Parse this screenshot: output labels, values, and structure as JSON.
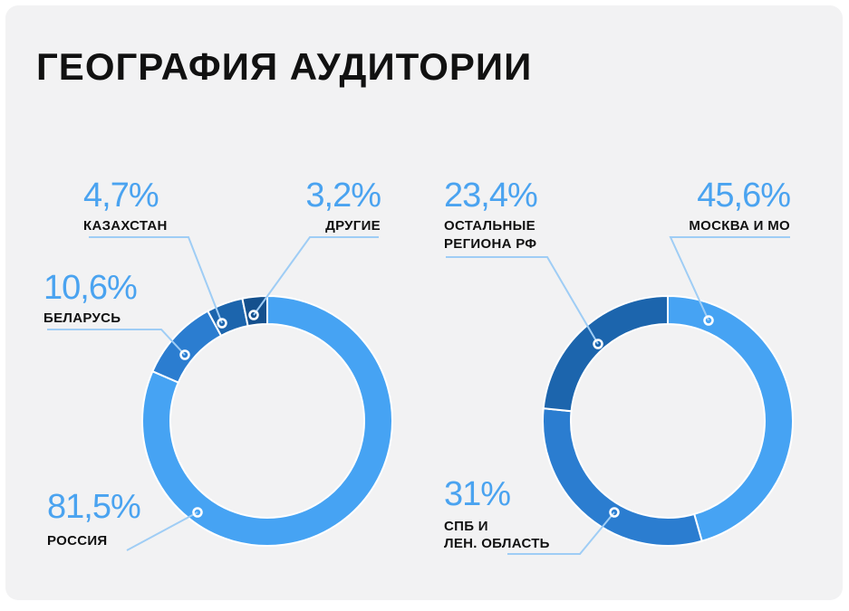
{
  "title": "ГЕОГРАФИЯ АУДИТОРИИ",
  "colors": {
    "background": "#f2f2f3",
    "label_text": "#111111",
    "percent_text": "#4aa3f0",
    "leader_line": "#9fcdf5"
  },
  "chart_data": [
    {
      "type": "pie",
      "style": "donut",
      "title": "",
      "slices": [
        {
          "name": "РОССИЯ",
          "value": 81.5,
          "pct_label": "81,5%",
          "color": "#46a3f3"
        },
        {
          "name": "БЕЛАРУСЬ",
          "value": 10.6,
          "pct_label": "10,6%",
          "color": "#2b7dd0"
        },
        {
          "name": "КАЗАХСТАН",
          "value": 4.7,
          "pct_label": "4,7%",
          "color": "#1c65ad"
        },
        {
          "name": "ДРУГИЕ",
          "value": 3.2,
          "pct_label": "3,2%",
          "color": "#14508d"
        }
      ]
    },
    {
      "type": "pie",
      "style": "donut",
      "title": "",
      "slices": [
        {
          "name": "МОСКВА И МО",
          "value": 45.6,
          "pct_label": "45,6%",
          "color": "#46a3f3"
        },
        {
          "name": "СПБ И ЛЕН. ОБЛАСТЬ",
          "value": 31,
          "pct_label": "31%",
          "color": "#2b7dd0"
        },
        {
          "name": "ОСТАЛЬНЫЕ РЕГИОНА РФ",
          "value": 23.4,
          "pct_label": "23,4%",
          "color": "#1c65ad"
        }
      ]
    }
  ]
}
